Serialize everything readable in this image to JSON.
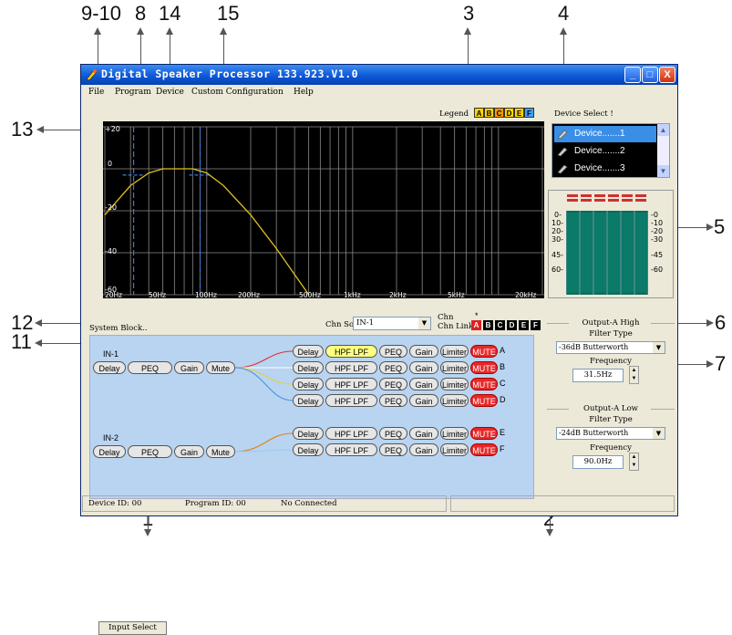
{
  "callouts": {
    "c9_10": "9-10",
    "c8": "8",
    "c14": "14",
    "c15": "15",
    "c3": "3",
    "c4": "4",
    "c13": "13",
    "c5": "5",
    "c12": "12",
    "c11": "11",
    "c6": "6",
    "c7": "7",
    "c1": "1",
    "c2": "2"
  },
  "window": {
    "title": "Digital Speaker Processor 133.923.V1.0",
    "buttons": {
      "minimize": "_",
      "maximize": "□",
      "close": "X"
    }
  },
  "menu": [
    "File",
    "Program",
    "Device",
    "Custom Configuration",
    "Help"
  ],
  "legend": {
    "label": "Legend",
    "items": [
      "A",
      "B",
      "C",
      "D",
      "E",
      "F"
    ],
    "colors": [
      "#ffd700",
      "#ffd700",
      "#ff9900",
      "#ffd700",
      "#ffd700",
      "#40a0ff"
    ]
  },
  "device_select": {
    "label": "Device Select !",
    "items": [
      "Device.......1",
      "Device.......2",
      "Device.......3"
    ],
    "selected": 0
  },
  "graph": {
    "ylabels": [
      "+20",
      "0",
      "-20",
      "-40",
      "-60"
    ],
    "xlabels": [
      "20Hz",
      "50Hz",
      "100Hz",
      "200Hz",
      "500Hz",
      "1kHz",
      "2kHz",
      "5kHz",
      "20kHz"
    ],
    "curve_color": "#e0c020",
    "marker_color": "#3a7ad8"
  },
  "chart_data": {
    "type": "line",
    "x_scale": "log",
    "xlim": [
      20,
      20000
    ],
    "ylim": [
      -60,
      20
    ],
    "x": [
      20,
      30,
      40,
      50,
      60,
      80,
      100,
      130,
      200,
      300,
      500
    ],
    "series": [
      {
        "values": [
          -22,
          -8,
          -2,
          0,
          0,
          0,
          -2,
          -8,
          -22,
          -38,
          -60
        ]
      }
    ],
    "grid": true
  },
  "meter": {
    "left_labels": [
      "0-",
      "10-",
      "20-",
      "30-",
      "45-",
      "60-"
    ],
    "right_labels": [
      "-0",
      "-10",
      "-20",
      "-30",
      "-45",
      "-60"
    ],
    "led_color": "#d03030"
  },
  "system": {
    "label": "System Block..",
    "chn_source_label": "Chn Source",
    "chn_source_value": "IN-1",
    "chn_label": "Chn",
    "chn_link_label": "Chn Link",
    "link_marker": "*",
    "link_items": [
      "A",
      "B",
      "C",
      "D",
      "E",
      "F"
    ],
    "link_active": 0,
    "input_select": "Input Select",
    "inputs": [
      {
        "name": "IN-1",
        "blocks": [
          "Delay",
          "PEQ",
          "Gain",
          "Mute"
        ]
      },
      {
        "name": "IN-2",
        "blocks": [
          "Delay",
          "PEQ",
          "Gain",
          "Mute"
        ]
      }
    ],
    "outputs": [
      {
        "letter": "A",
        "blocks": [
          "Delay",
          "HPF LPF",
          "PEQ",
          "Gain",
          "Limiter",
          "MUTE"
        ],
        "highlight": true,
        "wire": "#e03030"
      },
      {
        "letter": "B",
        "blocks": [
          "Delay",
          "HPF LPF",
          "PEQ",
          "Gain",
          "Limiter",
          "MUTE"
        ],
        "highlight": false,
        "wire": "#ffffff"
      },
      {
        "letter": "C",
        "blocks": [
          "Delay",
          "HPF LPF",
          "PEQ",
          "Gain",
          "Limiter",
          "MUTE"
        ],
        "highlight": false,
        "wire": "#e0d040"
      },
      {
        "letter": "D",
        "blocks": [
          "Delay",
          "HPF LPF",
          "PEQ",
          "Gain",
          "Limiter",
          "MUTE"
        ],
        "highlight": false,
        "wire": "#4a90e0"
      },
      {
        "letter": "E",
        "blocks": [
          "Delay",
          "HPF LPF",
          "PEQ",
          "Gain",
          "Limiter",
          "MUTE"
        ],
        "highlight": false,
        "wire": "#e08020"
      },
      {
        "letter": "F",
        "blocks": [
          "Delay",
          "HPF LPF",
          "PEQ",
          "Gain",
          "Limiter",
          "MUTE"
        ],
        "highlight": false,
        "wire": "#a0c8f0"
      }
    ]
  },
  "right_panel": {
    "high_title": "Output-A High",
    "high_filter_label": "Filter Type",
    "high_filter_value": "-36dB Butterworth",
    "high_freq_label": "Frequency",
    "high_freq_value": "31.5Hz",
    "low_title": "Output-A Low",
    "low_filter_label": "Filter Type",
    "low_filter_value": "-24dB Butterworth",
    "low_freq_label": "Frequency",
    "low_freq_value": "90.0Hz"
  },
  "status": {
    "device_id": "Device ID: 00",
    "program_id": "Program ID: 00",
    "connection": "No Connected"
  }
}
